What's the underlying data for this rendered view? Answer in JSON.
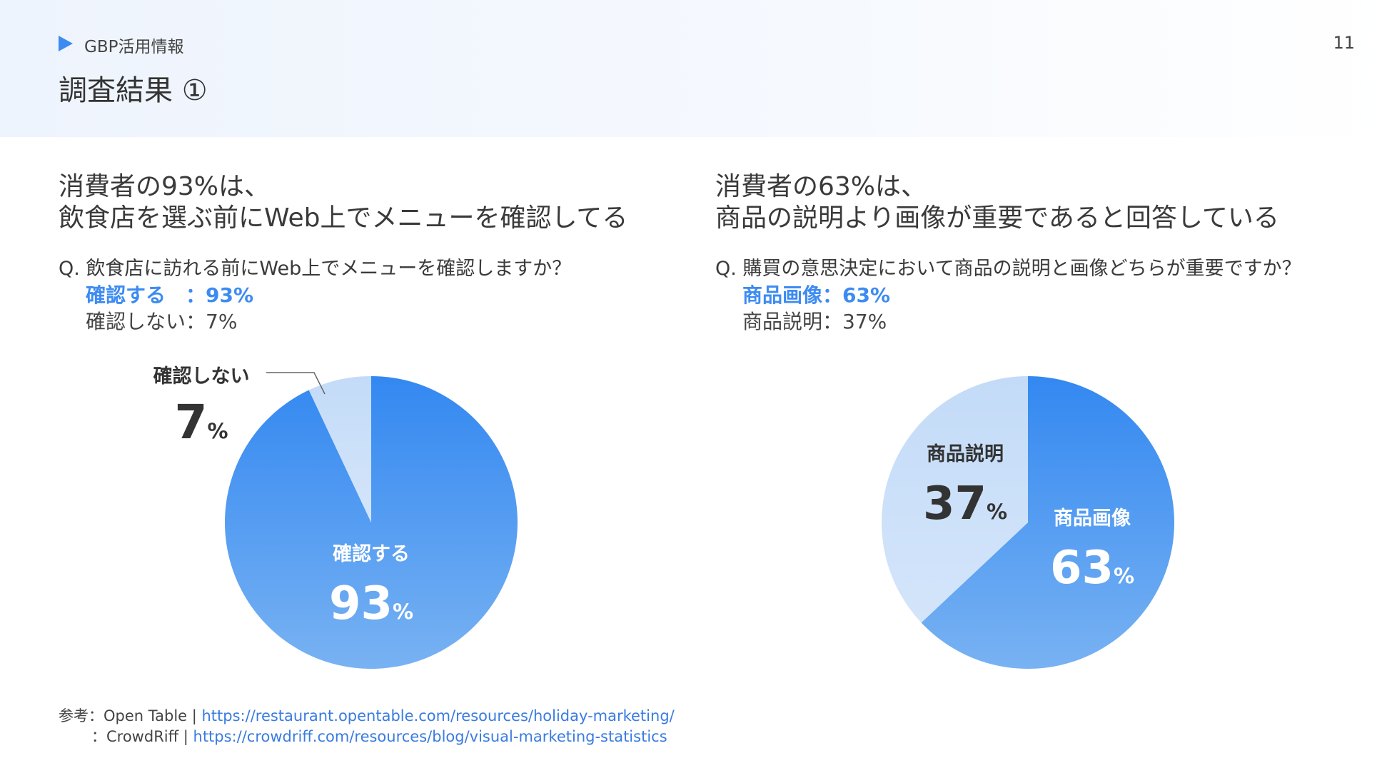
{
  "header": {
    "section_label": "GBP活用情報",
    "page_number": "11",
    "title": "調査結果 ①",
    "accent_color": "#3d8bf2"
  },
  "panels": [
    {
      "headline_line1": "消費者の93%は、",
      "headline_line2": "飲食店を選ぶ前にWeb上でメニューを確認してる",
      "question": "Q. 飲食店に訪れる前にWeb上でメニューを確認しますか？",
      "answer1": "確認する　：93%",
      "answer2": "確認しない：7%"
    },
    {
      "headline_line1": "消費者の63%は、",
      "headline_line2": "商品の説明より画像が重要であると回答している",
      "question": "Q. 購買の意思決定において商品の説明と画像どちらが重要ですか？",
      "answer1": "商品画像：63%",
      "answer2": "商品説明：37%"
    }
  ],
  "chart_data": [
    {
      "type": "pie",
      "slices": [
        {
          "label": "確認する",
          "value": 93,
          "value_text": "93",
          "unit": "%",
          "color": "#3d8bf2"
        },
        {
          "label": "確認しない",
          "value": 7,
          "value_text": "7",
          "unit": "%",
          "color": "#c8ddf8"
        }
      ]
    },
    {
      "type": "pie",
      "slices": [
        {
          "label": "商品画像",
          "value": 63,
          "value_text": "63",
          "unit": "%",
          "color": "#3d8bf2"
        },
        {
          "label": "商品説明",
          "value": 37,
          "value_text": "37",
          "unit": "%",
          "color": "#c8ddf8"
        }
      ]
    }
  ],
  "references": {
    "line1_prefix": "参考：Open Table | ",
    "line1_link": "https://restaurant.opentable.com/resources/holiday-marketing/",
    "line2_prefix": "：CrowdRiff | ",
    "line2_link": "https://crowdriff.com/resources/blog/visual-marketing-statistics"
  }
}
